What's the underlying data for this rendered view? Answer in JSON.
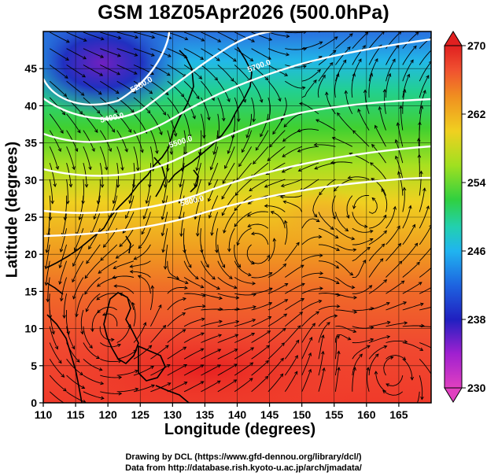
{
  "title": "GSM 18Z05Apr2026 (500.0hPa)",
  "axes": {
    "xlabel": "Longitude (degrees)",
    "ylabel": "Latitude  (degrees)",
    "xticks": [
      "110",
      "115",
      "120",
      "125",
      "130",
      "135",
      "140",
      "145",
      "150",
      "155",
      "160",
      "165"
    ],
    "yticks": [
      "0",
      "5",
      "10",
      "15",
      "20",
      "25",
      "30",
      "35",
      "40",
      "45"
    ],
    "xrange": [
      110,
      170
    ],
    "yrange": [
      0,
      50
    ]
  },
  "colorbar": {
    "range": [
      230,
      270
    ],
    "ticks": [
      "230",
      "238",
      "246",
      "254",
      "262",
      "270"
    ],
    "colors": [
      "#e040c0",
      "#a020d0",
      "#2020c0",
      "#1e64e0",
      "#20b4f0",
      "#22d0b0",
      "#30d040",
      "#a0e020",
      "#f0d020",
      "#f09020",
      "#f05030",
      "#e02020"
    ]
  },
  "contours": {
    "color": "#ffffff",
    "labels": [
      "5280.0",
      "5400.0",
      "5500.0",
      "5700.0",
      "5800.0"
    ]
  },
  "credits": {
    "line1": "Drawing by DCL (https://www.gfd-dennou.org/library/dcl/)",
    "line2": "Data from http://database.rish.kyoto-u.ac.jp/arch/jmadata/"
  }
}
